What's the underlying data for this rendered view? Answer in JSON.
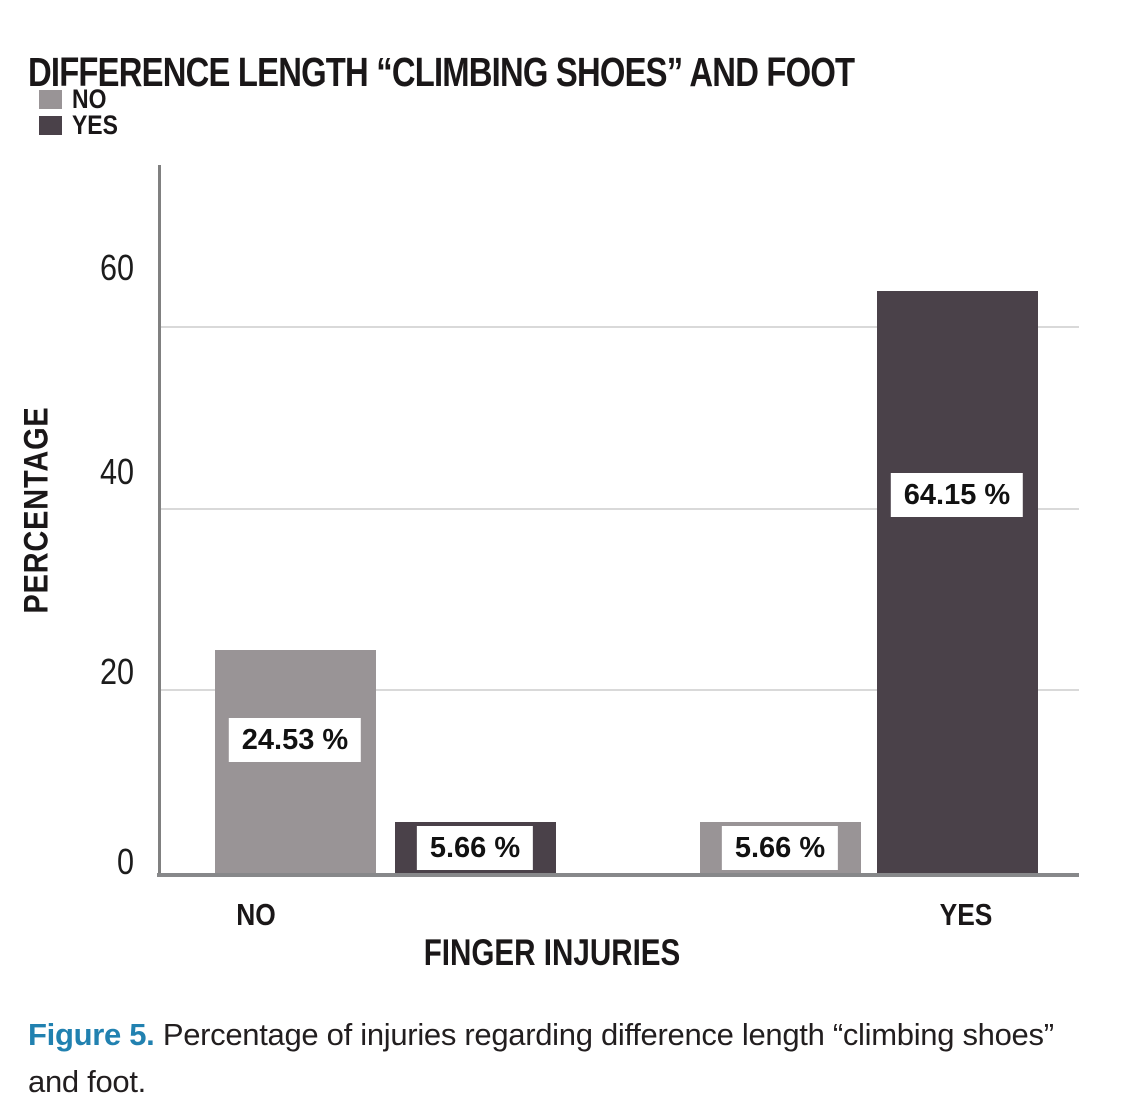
{
  "figure": {
    "title": "DIFFERENCE LENGTH “CLIMBING SHOES” AND FOOT",
    "caption": {
      "label": "Figure 5.",
      "text": " Percentage of injuries regarding difference length “climbing shoes” and foot."
    }
  },
  "chart_data": {
    "type": "bar",
    "title": "DIFFERENCE LENGTH “CLIMBING SHOES” AND FOOT",
    "xlabel": "FINGER INJURIES",
    "ylabel": "PERCENTAGE",
    "categories": [
      "NO",
      "YES"
    ],
    "series": [
      {
        "name": "NO",
        "color": "#999496",
        "values": [
          24.53,
          5.66
        ]
      },
      {
        "name": "YES",
        "color": "#4a4149",
        "values": [
          5.66,
          64.15
        ]
      }
    ],
    "value_labels": [
      [
        "24.53 %",
        "5.66 %"
      ],
      [
        "5.66 %",
        "64.15 %"
      ]
    ],
    "yticks": [
      0,
      20,
      40,
      60
    ],
    "ylim": [
      0,
      78
    ],
    "grid": "horizontal gridlines at 20, 40, 60",
    "legend_position": "top-left",
    "legend_entries": [
      "NO",
      "YES"
    ],
    "colors": {
      "axis": "#808080",
      "gridline": "#d9d9d9",
      "caption_accent": "#2181b0",
      "text": "#1a1718",
      "label_box_bg": "#ffffff"
    }
  }
}
